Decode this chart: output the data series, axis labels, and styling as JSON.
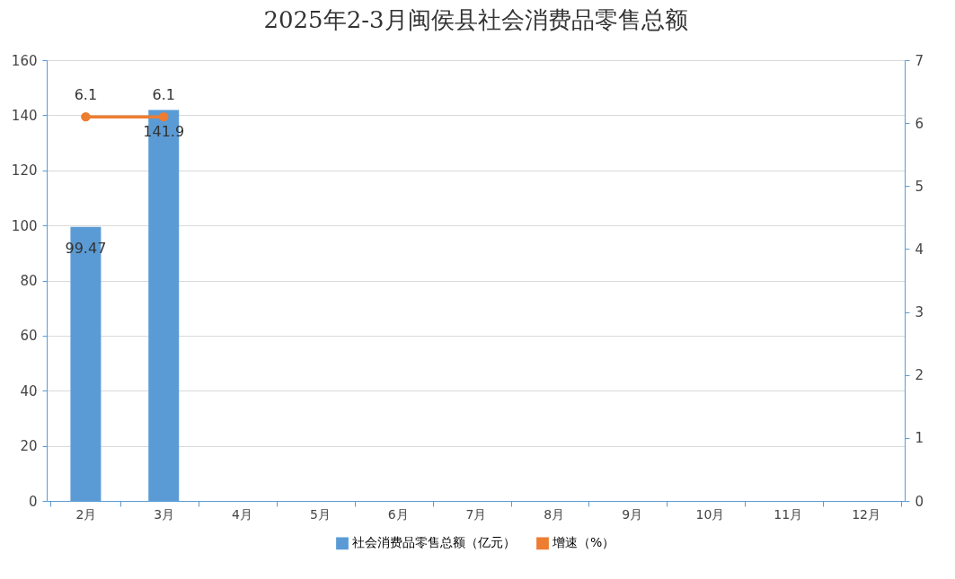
{
  "chart_data": {
    "type": "bar",
    "title": "2025年2-3月闽侯县社会消费品零售总额",
    "categories": [
      "2月",
      "3月",
      "4月",
      "5月",
      "6月",
      "7月",
      "8月",
      "9月",
      "10月",
      "11月",
      "12月"
    ],
    "series": [
      {
        "name": "社会消费品零售总额（亿元）",
        "color": "#5b9bd5",
        "values": [
          99.47,
          141.9,
          null,
          null,
          null,
          null,
          null,
          null,
          null,
          null,
          null
        ]
      },
      {
        "name": "增速（%）",
        "type": "line",
        "axis": "y2",
        "color": "#ed7d31",
        "values": [
          6.1,
          6.1,
          null,
          null,
          null,
          null,
          null,
          null,
          null,
          null,
          null
        ]
      }
    ],
    "ylim": [
      0,
      160
    ],
    "yticks": [
      0,
      20,
      40,
      60,
      80,
      100,
      120,
      140,
      160
    ],
    "y2lim": [
      0,
      7
    ],
    "y2ticks": [
      0,
      1,
      2,
      3,
      4,
      5,
      6,
      7
    ],
    "grid": "y",
    "legend": "bottom",
    "marker": "circle",
    "line_style": "solid",
    "data_labels": true
  }
}
